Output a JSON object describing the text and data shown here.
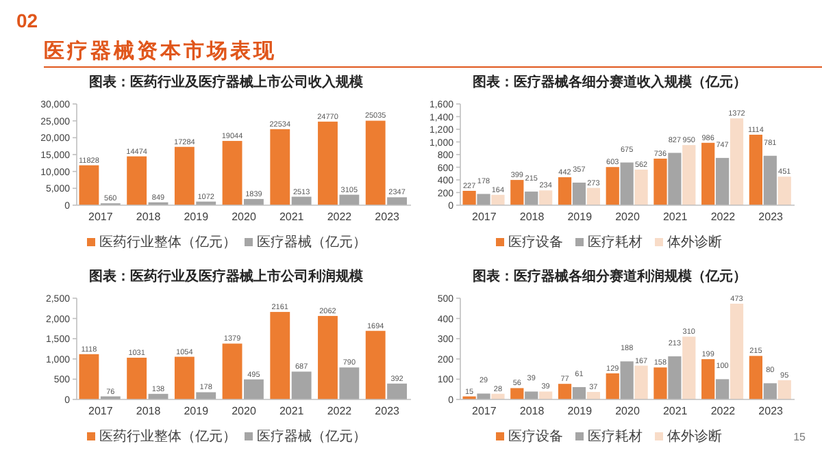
{
  "chart_data": [
    {
      "type": "bar",
      "title": "图表：医药行业及医疗器械上市公司收入规模",
      "annotations": [
        "02",
        "医疗器械资本市场表现"
      ],
      "categories": [
        "2017",
        "2018",
        "2019",
        "2020",
        "2021",
        "2022",
        "2023"
      ],
      "series": [
        {
          "name": "医药行业整体（亿元）",
          "color": "#ed7d31",
          "values": [
            11828,
            14474,
            17284,
            19044,
            22534,
            24770,
            25035
          ]
        },
        {
          "name": "医疗器械（亿元）",
          "color": "#a5a5a5",
          "values": [
            560,
            849,
            1072,
            1839,
            2513,
            3105,
            2347
          ]
        }
      ],
      "ylim": [
        0,
        30000
      ],
      "yticks": [
        0,
        {
          "value": 5000,
          "label": "5,000"
        },
        {
          "value": 10000,
          "label": "10,000"
        },
        {
          "value": 15000,
          "label": "15,000"
        },
        {
          "value": 20000,
          "label": "20,000"
        },
        {
          "value": 25000,
          "label": "25,000"
        },
        {
          "value": 30000,
          "label": "30,000"
        }
      ],
      "data_labels": true,
      "legend": "bottom"
    },
    {
      "type": "bar",
      "title": "图表：医疗器械各细分赛道收入规模（亿元）",
      "categories": [
        "2017",
        "2018",
        "2019",
        "2020",
        "2021",
        "2022",
        "2023"
      ],
      "series": [
        {
          "name": "医疗设备",
          "color": "#ed7d31",
          "values": [
            227,
            399,
            442,
            603,
            736,
            986,
            1114
          ]
        },
        {
          "name": "医疗耗材",
          "color": "#a5a5a5",
          "values": [
            178,
            215,
            357,
            675,
            827,
            747,
            781
          ]
        },
        {
          "name": "体外诊断",
          "color": "#f8dcc8",
          "values": [
            164,
            234,
            273,
            562,
            950,
            1372,
            451
          ]
        }
      ],
      "ylim": [
        0,
        1600
      ],
      "yticks": [
        0,
        200,
        400,
        600,
        800,
        {
          "value": 1000,
          "label": "1,000"
        },
        {
          "value": 1200,
          "label": "1,200"
        },
        {
          "value": 1400,
          "label": "1,400"
        },
        {
          "value": 1600,
          "label": "1,600"
        }
      ],
      "data_labels": true,
      "legend": "bottom"
    },
    {
      "type": "bar",
      "title": "图表：医药行业及医疗器械上市公司利润规模",
      "categories": [
        "2017",
        "2018",
        "2019",
        "2020",
        "2021",
        "2022",
        "2023"
      ],
      "series": [
        {
          "name": "医药行业整体（亿元）",
          "color": "#ed7d31",
          "values": [
            1118,
            1031,
            1054,
            1379,
            2161,
            2062,
            1694
          ]
        },
        {
          "name": "医疗器械（亿元）",
          "color": "#a5a5a5",
          "values": [
            76,
            138,
            178,
            495,
            687,
            790,
            392
          ]
        }
      ],
      "ylim": [
        0,
        2500
      ],
      "yticks": [
        0,
        500,
        {
          "value": 1000,
          "label": "1,000"
        },
        {
          "value": 1500,
          "label": "1,500"
        },
        {
          "value": 2000,
          "label": "2,000"
        },
        {
          "value": 2500,
          "label": "2,500"
        }
      ],
      "data_labels": true,
      "legend": "bottom"
    },
    {
      "type": "bar",
      "title": "图表：医疗器械各细分赛道利润规模（亿元）",
      "annotations": [
        "15"
      ],
      "categories": [
        "2017",
        "2018",
        "2019",
        "2020",
        "2021",
        "2022",
        "2023"
      ],
      "series": [
        {
          "name": "医疗设备",
          "color": "#ed7d31",
          "values": [
            15,
            56,
            77,
            129,
            158,
            199,
            215
          ]
        },
        {
          "name": "医疗耗材",
          "color": "#a5a5a5",
          "values": [
            29,
            39,
            61,
            188,
            213,
            100,
            80
          ]
        },
        {
          "name": "体外诊断",
          "color": "#f8dcc8",
          "values": [
            28,
            39,
            37,
            167,
            310,
            473,
            95
          ]
        }
      ],
      "ylim": [
        0,
        500
      ],
      "yticks": [
        0,
        100,
        200,
        300,
        400,
        500
      ],
      "data_labels": true,
      "legend": "bottom"
    }
  ]
}
